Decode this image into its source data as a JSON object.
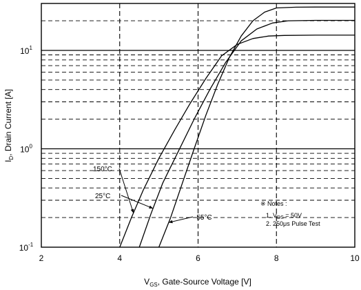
{
  "chart_data": {
    "type": "line",
    "title": "",
    "xlabel": "V_GS, Gate-Source Voltage [V]",
    "xlabel_parts": {
      "main": "V",
      "sub": "GS",
      "rest": ", Gate-Source Voltage [V]"
    },
    "ylabel": "I_D, Drain Current [A]",
    "ylabel_parts": {
      "main": "I",
      "sub": "D",
      "rest": ", Drain Current [A]"
    },
    "xlim": [
      2,
      10
    ],
    "ylim": [
      0.1,
      30
    ],
    "y_scale": "log",
    "x_ticks": [
      "2",
      "4",
      "6",
      "8",
      "10"
    ],
    "y_ticks": [
      {
        "value": 0.1,
        "base": "10",
        "exp": "-1"
      },
      {
        "value": 1,
        "base": "10",
        "exp": "0"
      },
      {
        "value": 10,
        "base": "10",
        "exp": "1"
      }
    ],
    "grid": true,
    "legend": "none",
    "series": [
      {
        "name": "150°C",
        "x": [
          4.0,
          4.3,
          4.6,
          5.0,
          5.4,
          5.8,
          6.2,
          6.6,
          7.0,
          7.4,
          7.8,
          8.2,
          9.0,
          10.0
        ],
        "y": [
          0.1,
          0.2,
          0.38,
          0.8,
          1.55,
          2.9,
          5.2,
          8.8,
          11.5,
          13.2,
          14.0,
          14.2,
          14.3,
          14.3
        ]
      },
      {
        "name": "25°C",
        "x": [
          4.5,
          4.8,
          5.1,
          5.5,
          5.9,
          6.3,
          6.7,
          7.1,
          7.5,
          7.9,
          8.3,
          9.0,
          10.0
        ],
        "y": [
          0.1,
          0.22,
          0.45,
          0.95,
          2.0,
          4.0,
          7.5,
          12.5,
          16.5,
          19.0,
          20.0,
          20.2,
          20.2
        ]
      },
      {
        "name": "-55°C",
        "x": [
          5.0,
          5.3,
          5.6,
          5.9,
          6.2,
          6.5,
          6.8,
          7.1,
          7.4,
          7.7,
          8.0,
          8.5,
          9.0,
          10.0
        ],
        "y": [
          0.1,
          0.2,
          0.45,
          1.0,
          2.2,
          4.5,
          8.5,
          14.0,
          20.0,
          24.5,
          27.0,
          27.5,
          27.6,
          27.6
        ]
      }
    ],
    "curve_labels": [
      {
        "text": "150°C",
        "series": 0
      },
      {
        "text": "25°C",
        "series": 1
      },
      {
        "text": "-55°C",
        "series": 2
      }
    ],
    "notes": {
      "title": "※ Notes :",
      "lines": [
        "1. V_DS = 50V",
        "2. 250μs Pulse Test"
      ],
      "line1_parts": {
        "pre": "1. V",
        "sub": "DS",
        "post": " = 50V"
      },
      "line2": "2. 250μs Pulse Test"
    }
  }
}
